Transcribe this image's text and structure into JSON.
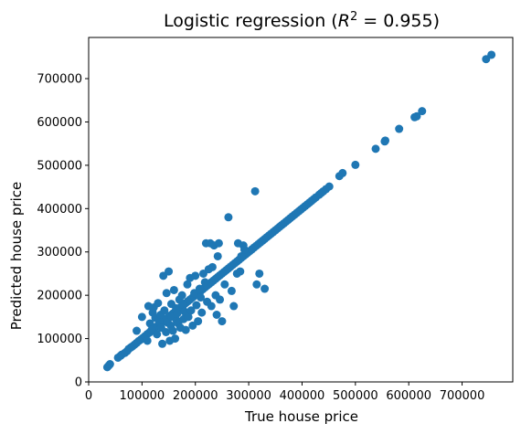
{
  "chart_data": {
    "type": "scatter",
    "title": "Logistic regression (R² = 0.955)",
    "title_parts": {
      "prefix": "Logistic regression (",
      "r": "R",
      "sup": "2",
      "suffix": " = 0.955)"
    },
    "xlabel": "True house price",
    "ylabel": "Predicted house price",
    "xlim": [
      0,
      795000
    ],
    "ylim": [
      0,
      795000
    ],
    "xticks": [
      {
        "value": 0,
        "label": "0"
      },
      {
        "value": 100000,
        "label": "100000"
      },
      {
        "value": 200000,
        "label": "200000"
      },
      {
        "value": 300000,
        "label": "300000"
      },
      {
        "value": 400000,
        "label": "400000"
      },
      {
        "value": 500000,
        "label": "500000"
      },
      {
        "value": 600000,
        "label": "600000"
      },
      {
        "value": 700000,
        "label": "700000"
      }
    ],
    "yticks": [
      {
        "value": 0,
        "label": "0"
      },
      {
        "value": 100000,
        "label": "100000"
      },
      {
        "value": 200000,
        "label": "200000"
      },
      {
        "value": 300000,
        "label": "300000"
      },
      {
        "value": 400000,
        "label": "400000"
      },
      {
        "value": 500000,
        "label": "500000"
      },
      {
        "value": 600000,
        "label": "600000"
      },
      {
        "value": 700000,
        "label": "700000"
      }
    ],
    "grid": false,
    "marker_color": "#1f77b4",
    "series": [
      {
        "points": [
          [
            34900,
            34000
          ],
          [
            37900,
            38000
          ],
          [
            40000,
            41000
          ],
          [
            55000,
            56000
          ],
          [
            60000,
            60500
          ],
          [
            62000,
            63000
          ],
          [
            68000,
            67000
          ],
          [
            72000,
            71000
          ],
          [
            75000,
            76000
          ],
          [
            79000,
            79500
          ],
          [
            82000,
            82000
          ],
          [
            86000,
            86000
          ],
          [
            90000,
            90000
          ],
          [
            94000,
            94500
          ],
          [
            98000,
            98000
          ],
          [
            102000,
            102000
          ],
          [
            106000,
            106000
          ],
          [
            110000,
            110500
          ],
          [
            114000,
            114000
          ],
          [
            118000,
            118000
          ],
          [
            122000,
            122000
          ],
          [
            126000,
            126500
          ],
          [
            130000,
            130000
          ],
          [
            134000,
            134000
          ],
          [
            138000,
            138000
          ],
          [
            142000,
            142000
          ],
          [
            146000,
            146500
          ],
          [
            150000,
            150000
          ],
          [
            154000,
            154000
          ],
          [
            158000,
            158000
          ],
          [
            162000,
            162000
          ],
          [
            166000,
            166000
          ],
          [
            170000,
            170000
          ],
          [
            174000,
            174000
          ],
          [
            178000,
            178000
          ],
          [
            182000,
            182000
          ],
          [
            186000,
            186000
          ],
          [
            190000,
            190000
          ],
          [
            194000,
            194000
          ],
          [
            198000,
            198000
          ],
          [
            202000,
            202000
          ],
          [
            206000,
            206000
          ],
          [
            210000,
            210000
          ],
          [
            214000,
            214000
          ],
          [
            218000,
            218000
          ],
          [
            222000,
            222000
          ],
          [
            226000,
            226000
          ],
          [
            230000,
            230000
          ],
          [
            234000,
            234000
          ],
          [
            238000,
            238000
          ],
          [
            242000,
            242000
          ],
          [
            246000,
            246000
          ],
          [
            250000,
            250000
          ],
          [
            254000,
            254000
          ],
          [
            258000,
            258000
          ],
          [
            262000,
            262000
          ],
          [
            266000,
            266000
          ],
          [
            270000,
            270000
          ],
          [
            274000,
            274000
          ],
          [
            278000,
            278000
          ],
          [
            282000,
            282000
          ],
          [
            286000,
            286000
          ],
          [
            290000,
            290000
          ],
          [
            294000,
            294000
          ],
          [
            298000,
            298000
          ],
          [
            302000,
            302000
          ],
          [
            306000,
            306000
          ],
          [
            310000,
            310000
          ],
          [
            314000,
            314000
          ],
          [
            318000,
            318000
          ],
          [
            322000,
            322000
          ],
          [
            326000,
            326000
          ],
          [
            330000,
            330000
          ],
          [
            334000,
            334000
          ],
          [
            338000,
            338000
          ],
          [
            342000,
            342000
          ],
          [
            346000,
            346000
          ],
          [
            350000,
            350000
          ],
          [
            354000,
            354000
          ],
          [
            358000,
            358000
          ],
          [
            362000,
            362000
          ],
          [
            366000,
            366000
          ],
          [
            370000,
            370000
          ],
          [
            374000,
            374000
          ],
          [
            378000,
            378000
          ],
          [
            382000,
            382000
          ],
          [
            386000,
            386000
          ],
          [
            390000,
            390000
          ],
          [
            394000,
            394000
          ],
          [
            398000,
            398000
          ],
          [
            402000,
            402000
          ],
          [
            406000,
            406000
          ],
          [
            410000,
            410000
          ],
          [
            414000,
            414000
          ],
          [
            418000,
            418000
          ],
          [
            422000,
            422000
          ],
          [
            426000,
            426000
          ],
          [
            432000,
            432000
          ],
          [
            436000,
            436000
          ],
          [
            440000,
            440000
          ],
          [
            445000,
            445000
          ],
          [
            451000,
            451000
          ],
          [
            470000,
            475000
          ],
          [
            476000,
            482000
          ],
          [
            500000,
            501000
          ],
          [
            538000,
            538000
          ],
          [
            555000,
            555000
          ],
          [
            556000,
            557000
          ],
          [
            582000,
            584000
          ],
          [
            611000,
            611000
          ],
          [
            615000,
            613000
          ],
          [
            625000,
            625000
          ],
          [
            745000,
            745000
          ],
          [
            755000,
            755000
          ],
          [
            90000,
            118000
          ],
          [
            100000,
            150000
          ],
          [
            110000,
            95000
          ],
          [
            112000,
            175000
          ],
          [
            115000,
            135000
          ],
          [
            118000,
            120000
          ],
          [
            120000,
            160000
          ],
          [
            122000,
            172000
          ],
          [
            125000,
            148000
          ],
          [
            128000,
            110000
          ],
          [
            130000,
            182000
          ],
          [
            132000,
            140000
          ],
          [
            135000,
            155000
          ],
          [
            136000,
            125000
          ],
          [
            138000,
            88000
          ],
          [
            140000,
            245000
          ],
          [
            142000,
            165000
          ],
          [
            145000,
            115000
          ],
          [
            146000,
            205000
          ],
          [
            148000,
            137000
          ],
          [
            150000,
            255000
          ],
          [
            152000,
            95000
          ],
          [
            154000,
            130000
          ],
          [
            155000,
            180000
          ],
          [
            156000,
            150000
          ],
          [
            158000,
            118000
          ],
          [
            160000,
            212000
          ],
          [
            162000,
            100000
          ],
          [
            164000,
            170000
          ],
          [
            165000,
            142000
          ],
          [
            166000,
            158000
          ],
          [
            168000,
            135000
          ],
          [
            170000,
            190000
          ],
          [
            172000,
            125000
          ],
          [
            175000,
            200000
          ],
          [
            177000,
            178000
          ],
          [
            178000,
            145000
          ],
          [
            180000,
            162000
          ],
          [
            182000,
            120000
          ],
          [
            185000,
            225000
          ],
          [
            187000,
            150000
          ],
          [
            190000,
            240000
          ],
          [
            192000,
            165000
          ],
          [
            195000,
            130000
          ],
          [
            198000,
            205000
          ],
          [
            200000,
            245000
          ],
          [
            202000,
            177000
          ],
          [
            205000,
            140000
          ],
          [
            208000,
            215000
          ],
          [
            210000,
            195000
          ],
          [
            212000,
            160000
          ],
          [
            215000,
            250000
          ],
          [
            218000,
            230000
          ],
          [
            220000,
            320000
          ],
          [
            222000,
            185000
          ],
          [
            225000,
            260000
          ],
          [
            228000,
            320000
          ],
          [
            230000,
            175000
          ],
          [
            232000,
            265000
          ],
          [
            235000,
            315000
          ],
          [
            238000,
            200000
          ],
          [
            240000,
            155000
          ],
          [
            242000,
            290000
          ],
          [
            244000,
            320000
          ],
          [
            246000,
            190000
          ],
          [
            250000,
            140000
          ],
          [
            255000,
            225000
          ],
          [
            262000,
            380000
          ],
          [
            268000,
            210000
          ],
          [
            272000,
            175000
          ],
          [
            278000,
            250000
          ],
          [
            280000,
            320000
          ],
          [
            284000,
            255000
          ],
          [
            286000,
            290000
          ],
          [
            290000,
            315000
          ],
          [
            292000,
            305000
          ],
          [
            312000,
            440000
          ],
          [
            315000,
            225000
          ],
          [
            320000,
            250000
          ],
          [
            330000,
            215000
          ]
        ]
      }
    ]
  }
}
